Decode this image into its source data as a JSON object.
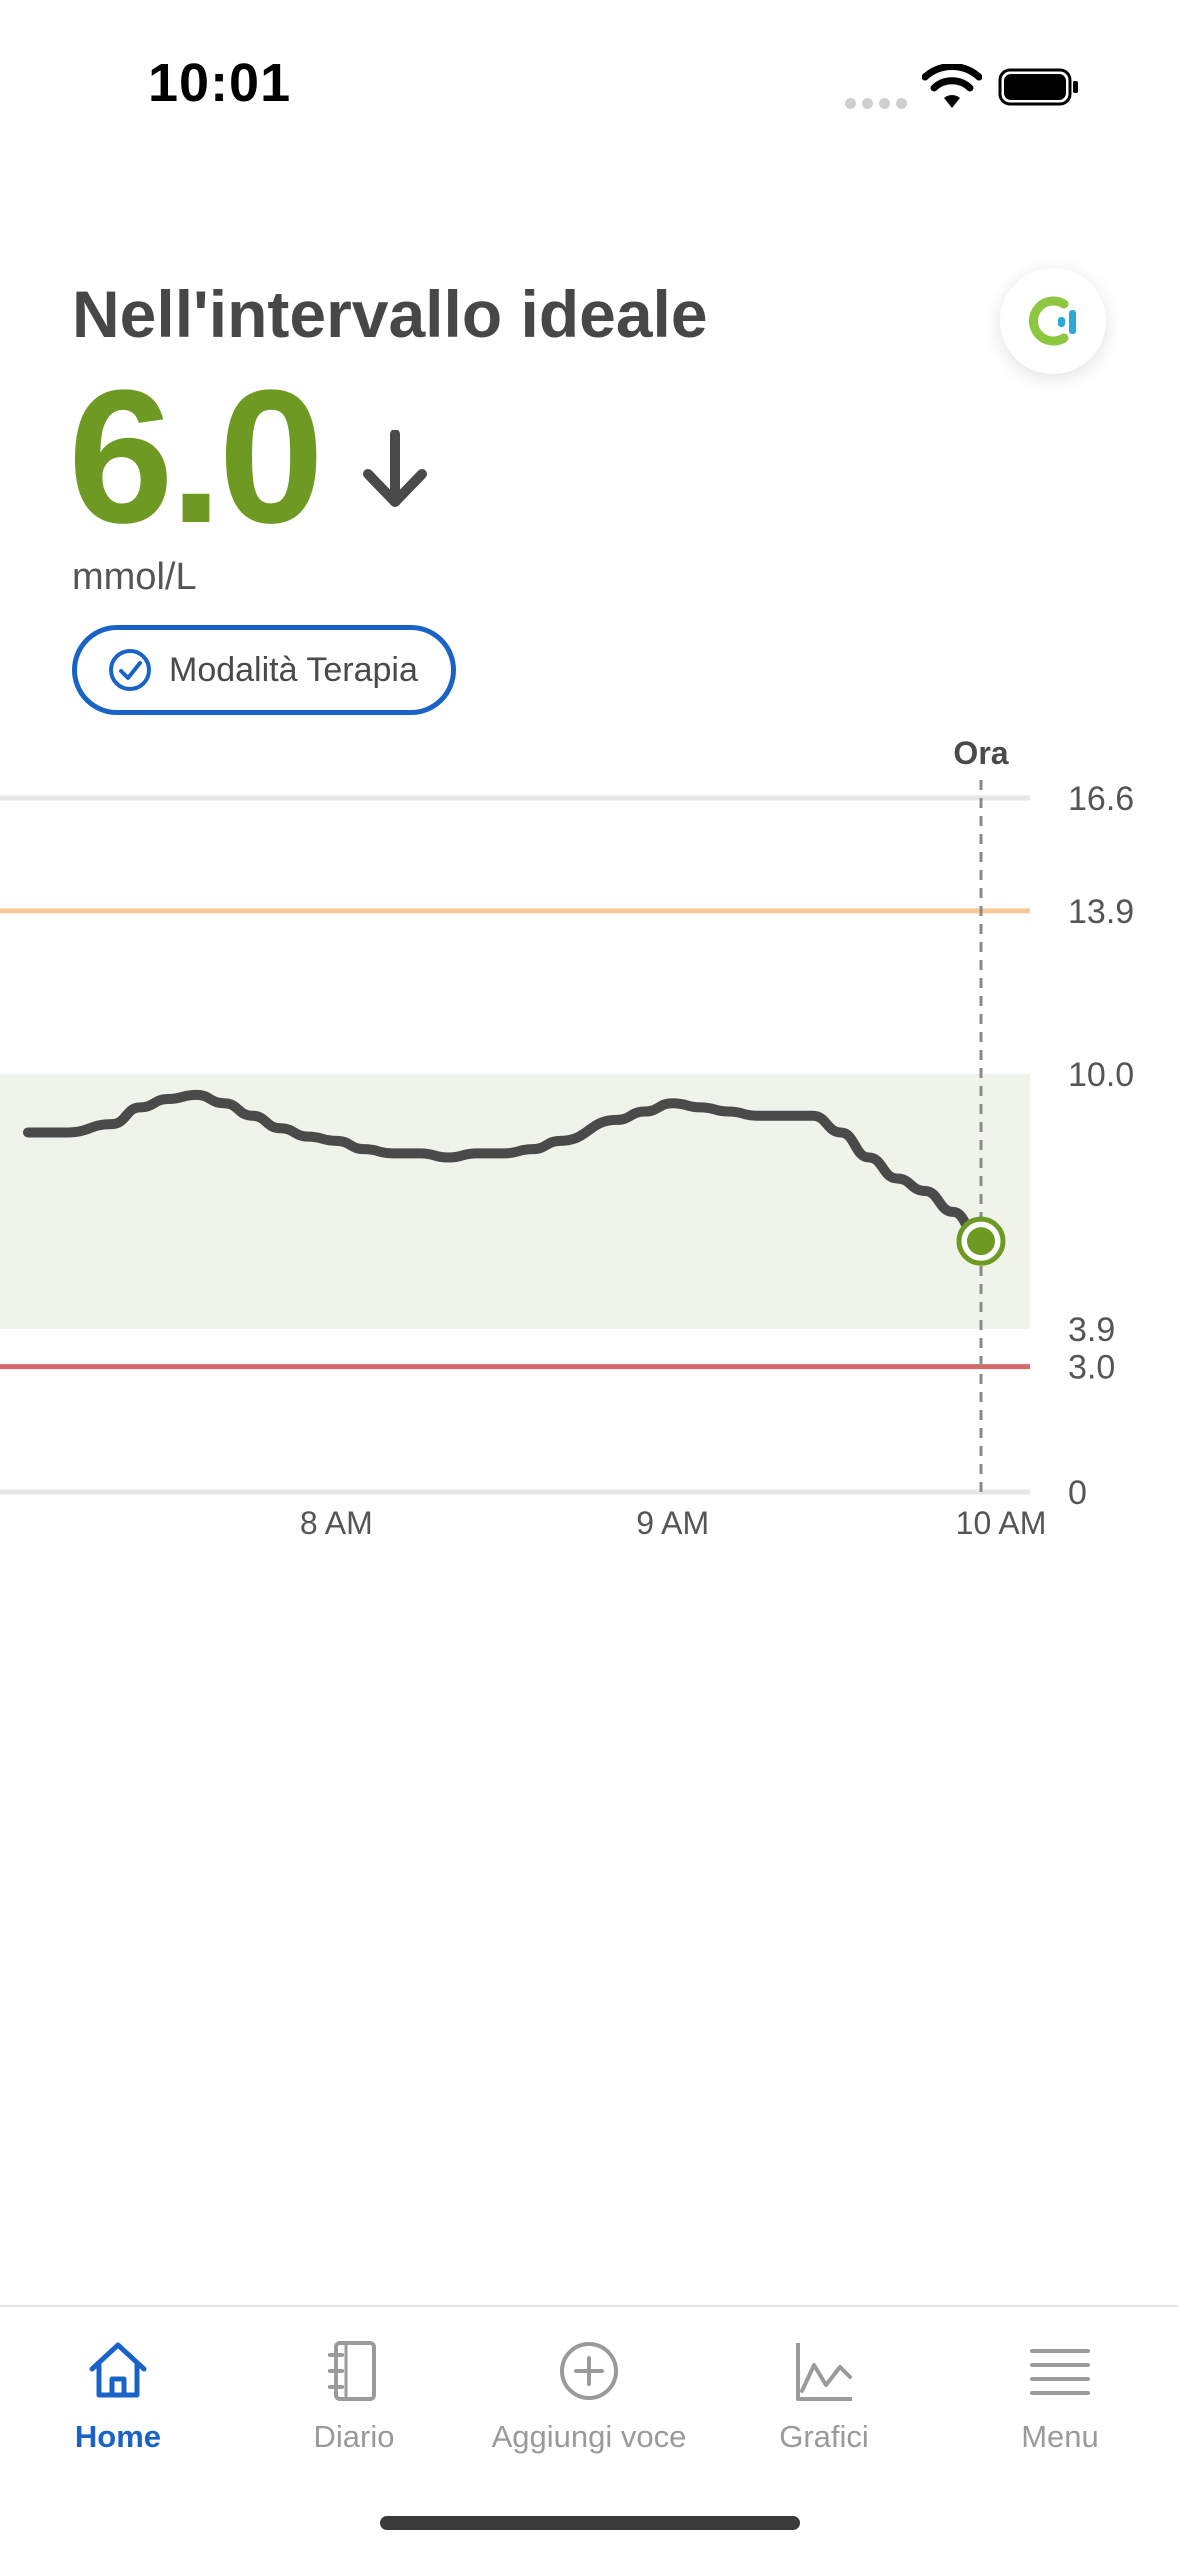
{
  "status_bar": {
    "time": "10:01"
  },
  "header": {
    "status_title": "Nell'intervallo ideale",
    "glucose_value": "6.0",
    "unit": "mmol/L",
    "trend_icon": "arrow-down-icon",
    "mode_label": "Modalità Terapia"
  },
  "colors": {
    "in_range": "#6e9a23",
    "accent_blue": "#1a63c6",
    "high_line": "#f6c89a",
    "low_line": "#d66a6a",
    "target_band": "#f0f3ea",
    "trace": "#4a4a4a"
  },
  "chart_data": {
    "type": "line",
    "now_label": "Ora",
    "x_tick_labels": [
      "8 AM",
      "9 AM",
      "10 AM"
    ],
    "x_ticks_min": [
      60,
      120,
      180
    ],
    "x_range_min": [
      0,
      182
    ],
    "y_ticks": [
      "16.6",
      "13.9",
      "10.0",
      "3.9",
      "3.0",
      "0"
    ],
    "ylim": [
      0,
      16.6
    ],
    "high_threshold": 13.9,
    "low_threshold": 3.0,
    "target_range": [
      3.9,
      10.0
    ],
    "current_point": {
      "x_min": 175,
      "y": 6.0
    },
    "series": [
      {
        "x_min": [
          5,
          12,
          20,
          25,
          30,
          35,
          40,
          45,
          50,
          55,
          60,
          65,
          70,
          75,
          80,
          85,
          90,
          95,
          100,
          110,
          115,
          120,
          125,
          130,
          135,
          140,
          145,
          150,
          155,
          160,
          165,
          170,
          175
        ],
        "values": [
          8.6,
          8.6,
          8.8,
          9.2,
          9.4,
          9.5,
          9.3,
          9.0,
          8.7,
          8.5,
          8.4,
          8.2,
          8.1,
          8.1,
          8.0,
          8.1,
          8.1,
          8.2,
          8.4,
          8.9,
          9.1,
          9.3,
          9.2,
          9.1,
          9.0,
          9.0,
          9.0,
          8.6,
          8.0,
          7.5,
          7.2,
          6.7,
          6.0
        ]
      }
    ]
  },
  "tabs": [
    {
      "label": "Home",
      "icon": "home-icon",
      "active": true
    },
    {
      "label": "Diario",
      "icon": "logbook-icon",
      "active": false
    },
    {
      "label": "Aggiungi voce",
      "icon": "add-circle-icon",
      "active": false
    },
    {
      "label": "Grafici",
      "icon": "chart-icon",
      "active": false
    },
    {
      "label": "Menu",
      "icon": "menu-icon",
      "active": false
    }
  ]
}
